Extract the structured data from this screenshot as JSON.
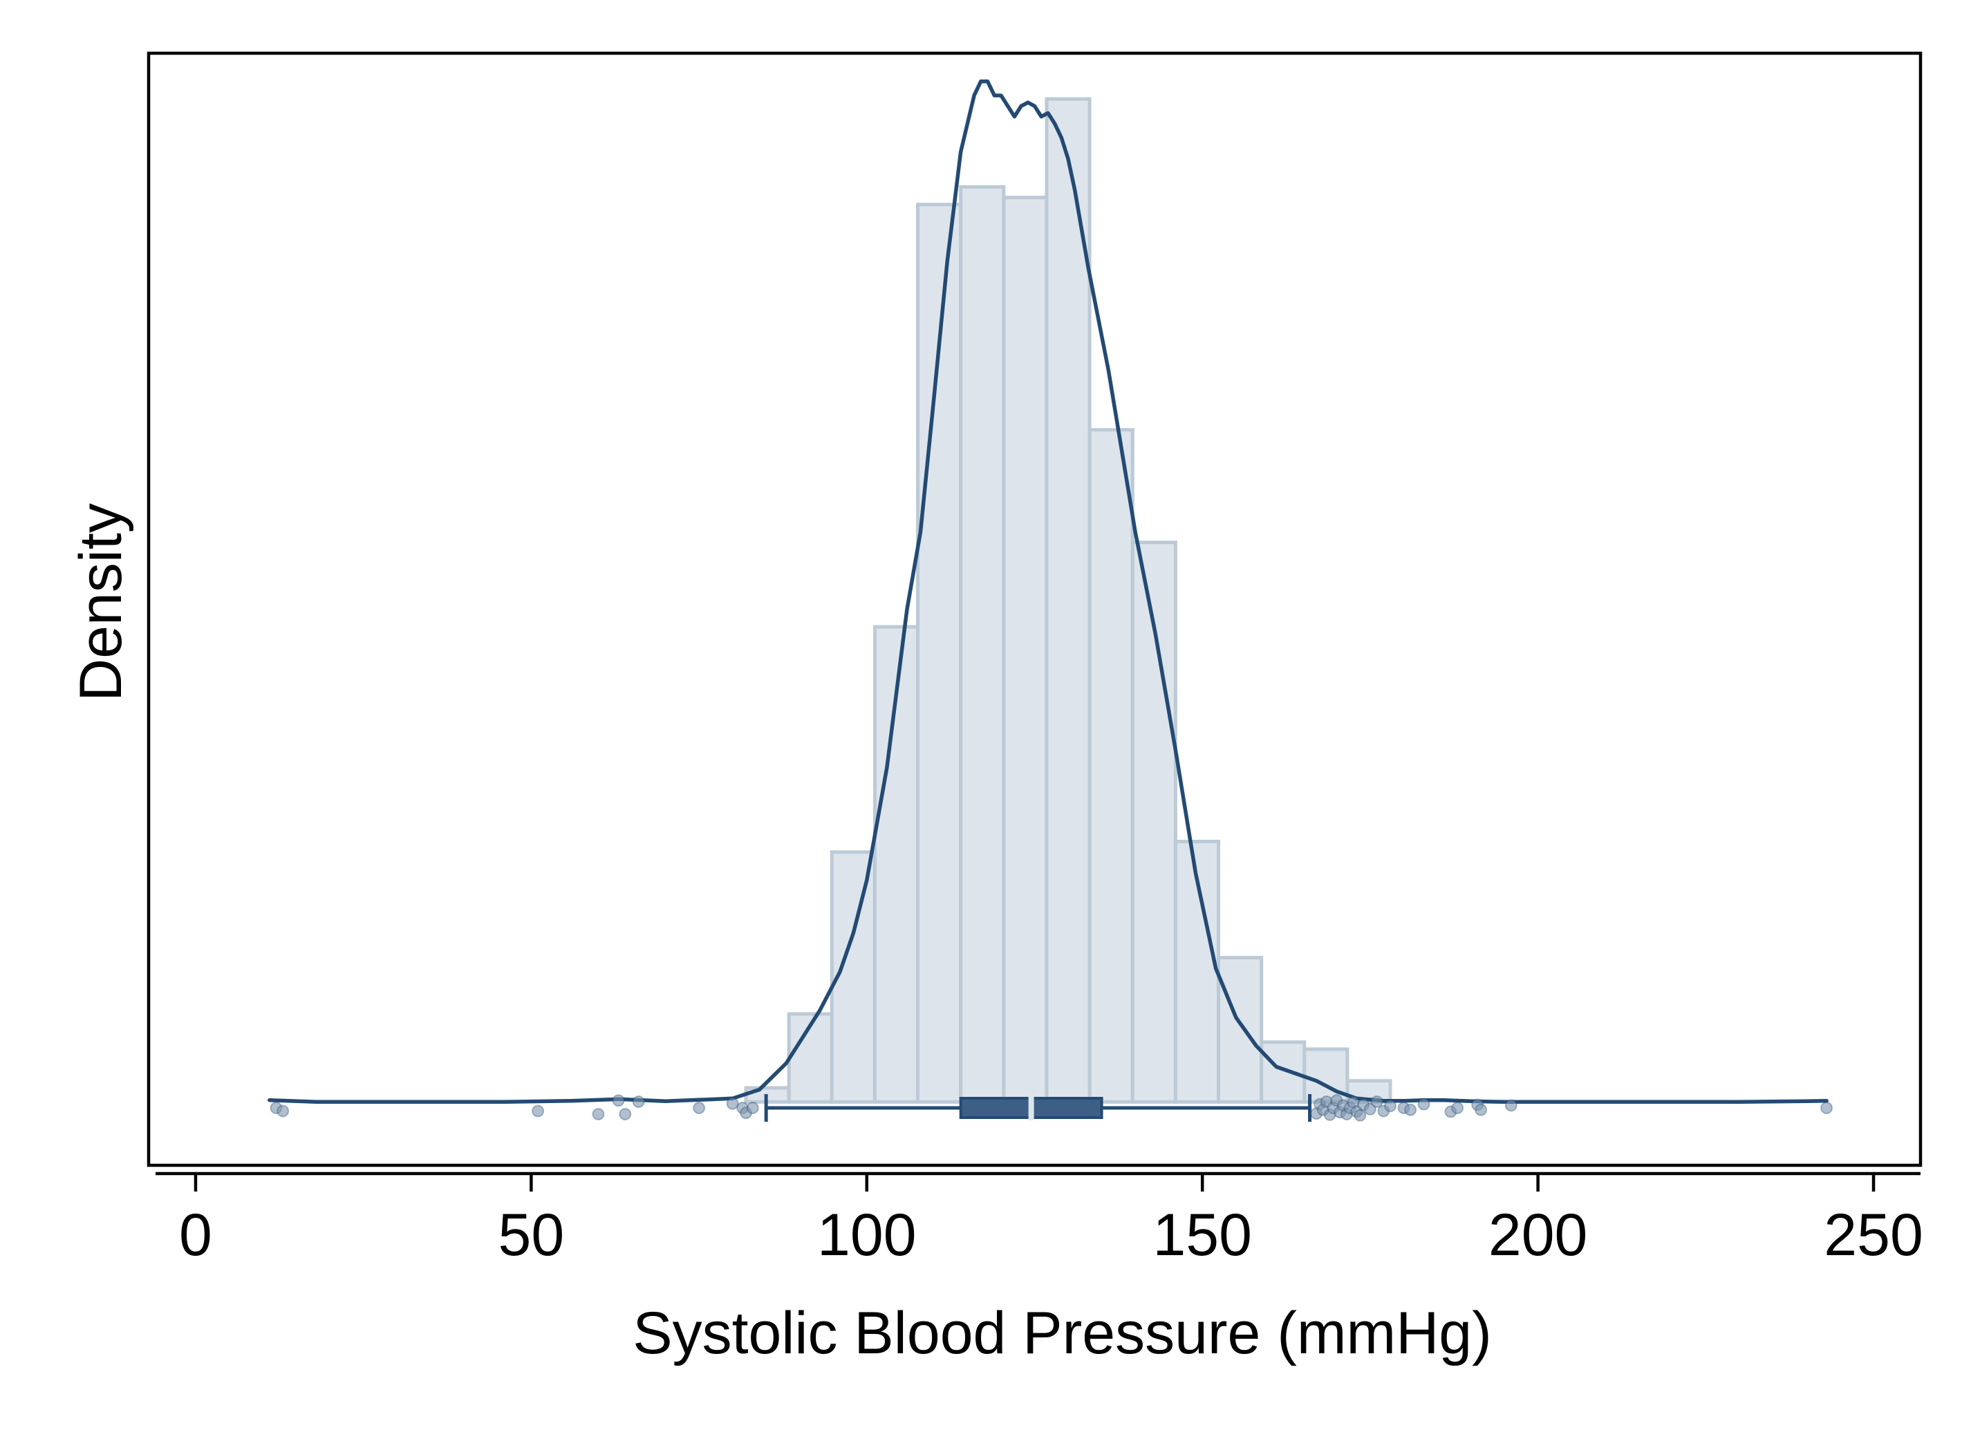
{
  "chart_data": {
    "type": "histogram",
    "xlabel": "Systolic Blood Pressure (mmHg)",
    "ylabel": "Density",
    "xlim": [
      -7,
      257
    ],
    "ylim": [
      -0.0018,
      0.0298
    ],
    "x_ticks": [
      0,
      50,
      100,
      150,
      200,
      250
    ],
    "y_ticks_shown": false,
    "grid": false,
    "legend": "none",
    "colors": {
      "bar_fill": "#dde4eb",
      "bar_stroke": "#bccad6",
      "line": "#234a73",
      "box_fill": "#3d5f86",
      "median": "#dde4eb",
      "outlier": "#7d95ae"
    },
    "histogram": {
      "bin_width": 6.4,
      "bins": [
        {
          "start": 82.0,
          "density": 0.0004
        },
        {
          "start": 88.4,
          "density": 0.0025
        },
        {
          "start": 94.8,
          "density": 0.0071
        },
        {
          "start": 101.2,
          "density": 0.0135
        },
        {
          "start": 107.6,
          "density": 0.0255
        },
        {
          "start": 114.0,
          "density": 0.026
        },
        {
          "start": 120.4,
          "density": 0.0257
        },
        {
          "start": 126.8,
          "density": 0.0285
        },
        {
          "start": 133.2,
          "density": 0.0191
        },
        {
          "start": 139.6,
          "density": 0.0159
        },
        {
          "start": 146.0,
          "density": 0.0074
        },
        {
          "start": 152.4,
          "density": 0.0041
        },
        {
          "start": 158.8,
          "density": 0.0017
        },
        {
          "start": 165.2,
          "density": 0.0015
        },
        {
          "start": 171.6,
          "density": 0.0006
        }
      ]
    },
    "density_curve": {
      "x": [
        11,
        18,
        30,
        46,
        56,
        63,
        70,
        80,
        84,
        88,
        90,
        93,
        96,
        98,
        100,
        103,
        106,
        108,
        110,
        112,
        114,
        116,
        117,
        118,
        119,
        120,
        121,
        122,
        123,
        124,
        125,
        126,
        127,
        128,
        129,
        130,
        131,
        133,
        136,
        140,
        143,
        146,
        149,
        152,
        155,
        158,
        161,
        164,
        167,
        170,
        173,
        177,
        180,
        183,
        186,
        190,
        195,
        200,
        210,
        220,
        230,
        240,
        243
      ],
      "y": [
        5e-05,
        0.0,
        0.0,
        0.0,
        3e-05,
        8e-05,
        2e-05,
        0.0001,
        0.00035,
        0.0011,
        0.0017,
        0.0026,
        0.0037,
        0.0048,
        0.0063,
        0.0095,
        0.014,
        0.0162,
        0.02,
        0.0239,
        0.027,
        0.0286,
        0.029,
        0.029,
        0.0286,
        0.0286,
        0.0283,
        0.028,
        0.0283,
        0.0284,
        0.0283,
        0.028,
        0.0281,
        0.0278,
        0.0274,
        0.0268,
        0.0259,
        0.0237,
        0.0208,
        0.0162,
        0.0133,
        0.01,
        0.0065,
        0.0038,
        0.0024,
        0.0016,
        0.001,
        0.0008,
        0.0006,
        0.0003,
        0.0001,
        3e-05,
        3e-05,
        5e-05,
        5e-05,
        2e-05,
        0.0,
        0.0,
        0.0,
        0.0,
        0.0,
        2e-05,
        3e-05
      ]
    },
    "boxplot": {
      "whisker_low": 85,
      "q1": 114,
      "median": 124.5,
      "q3": 135,
      "whisker_high": 166,
      "outliers": [
        {
          "x": 12,
          "j": 0.0
        },
        {
          "x": 13,
          "j": 0.5
        },
        {
          "x": 51,
          "j": 0.5
        },
        {
          "x": 60,
          "j": 1.0
        },
        {
          "x": 63,
          "j": -1.2
        },
        {
          "x": 64,
          "j": 1.0
        },
        {
          "x": 66,
          "j": -1.0
        },
        {
          "x": 75,
          "j": 0.0
        },
        {
          "x": 80,
          "j": -0.7
        },
        {
          "x": 81.5,
          "j": 0.0
        },
        {
          "x": 82,
          "j": 0.8
        },
        {
          "x": 83,
          "j": 0.0
        },
        {
          "x": 167,
          "j": 0.9
        },
        {
          "x": 167.5,
          "j": -0.6
        },
        {
          "x": 168,
          "j": 0.3
        },
        {
          "x": 168.5,
          "j": -1.0
        },
        {
          "x": 169,
          "j": 1.1
        },
        {
          "x": 169.5,
          "j": 0.0
        },
        {
          "x": 170,
          "j": -1.2
        },
        {
          "x": 170.5,
          "j": 0.7
        },
        {
          "x": 171,
          "j": -0.4
        },
        {
          "x": 171.5,
          "j": 1.0
        },
        {
          "x": 172,
          "j": 0.0
        },
        {
          "x": 172.5,
          "j": -0.9
        },
        {
          "x": 173,
          "j": 0.6
        },
        {
          "x": 173.5,
          "j": 1.2
        },
        {
          "x": 174,
          "j": -0.5
        },
        {
          "x": 175,
          "j": 0.2
        },
        {
          "x": 176,
          "j": -1.0
        },
        {
          "x": 177,
          "j": 0.5
        },
        {
          "x": 178,
          "j": -0.3
        },
        {
          "x": 180,
          "j": 0.0
        },
        {
          "x": 181,
          "j": 0.3
        },
        {
          "x": 183,
          "j": -0.6
        },
        {
          "x": 187,
          "j": 0.6
        },
        {
          "x": 188,
          "j": 0.0
        },
        {
          "x": 191,
          "j": -0.5
        },
        {
          "x": 191.5,
          "j": 0.3
        },
        {
          "x": 196,
          "j": -0.4
        },
        {
          "x": 243,
          "j": 0.0
        }
      ]
    }
  }
}
